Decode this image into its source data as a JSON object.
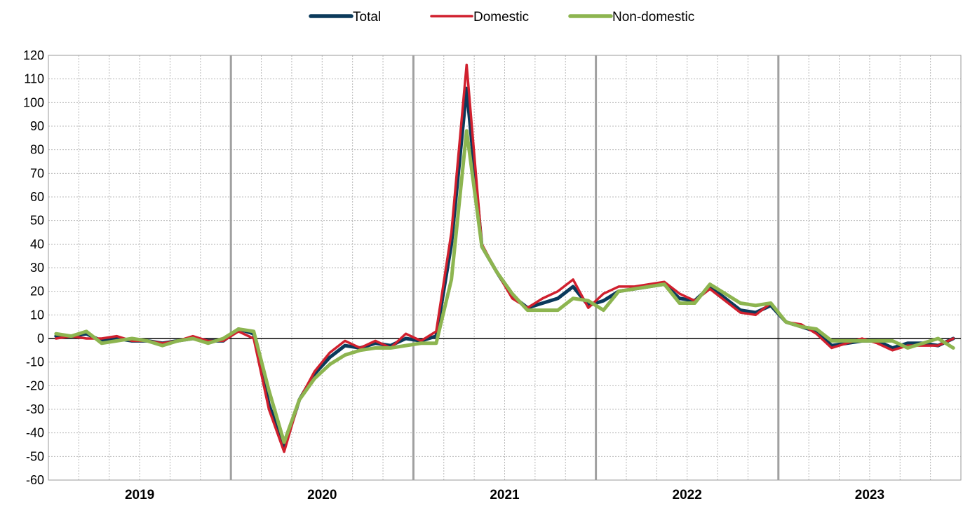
{
  "chart_data": {
    "type": "line",
    "title": "",
    "xlabel": "",
    "ylabel": "",
    "ylim": [
      -60,
      120
    ],
    "ytick_step": 10,
    "grid": true,
    "legend_position": "top-center",
    "years": [
      "2019",
      "2020",
      "2021",
      "2022",
      "2023"
    ],
    "months_per_year": 12,
    "series": [
      {
        "name": "Total",
        "color": "#0b3a5b",
        "values": [
          1,
          1,
          2,
          -1,
          0,
          -1,
          -1,
          -2,
          -1,
          0,
          -1,
          -1,
          4,
          2,
          -28,
          -46,
          -26,
          -15,
          -8,
          -3,
          -4,
          -2,
          -3,
          0,
          -1,
          1,
          40,
          106,
          39,
          28,
          18,
          13,
          15,
          17,
          22,
          14,
          16,
          20,
          21,
          22,
          23,
          17,
          16,
          22,
          17,
          12,
          11,
          14,
          7,
          5,
          3,
          -3,
          -2,
          -1,
          -1,
          -4,
          -2,
          -2,
          -3,
          0
        ]
      },
      {
        "name": "Domestic",
        "color": "#d0202e",
        "values": [
          0,
          1,
          0,
          0,
          1,
          -1,
          -1,
          -2,
          -1,
          1,
          -1,
          -1,
          3,
          0,
          -30,
          -48,
          -26,
          -14,
          -6,
          -1,
          -4,
          -1,
          -4,
          2,
          -1,
          3,
          45,
          116,
          40,
          28,
          17,
          13,
          17,
          20,
          25,
          13,
          19,
          22,
          22,
          23,
          24,
          19,
          16,
          21,
          16,
          11,
          10,
          15,
          7,
          6,
          2,
          -4,
          -2,
          0,
          -2,
          -5,
          -3,
          -3,
          -3,
          0
        ]
      },
      {
        "name": "Non-domestic",
        "color": "#8db550",
        "values": [
          2,
          1,
          3,
          -2,
          -1,
          0,
          -1,
          -3,
          -1,
          0,
          -2,
          0,
          4,
          3,
          -22,
          -44,
          -26,
          -17,
          -11,
          -7,
          -5,
          -4,
          -4,
          -3,
          -2,
          -2,
          25,
          88,
          39,
          28,
          19,
          12,
          12,
          12,
          17,
          16,
          12,
          20,
          21,
          22,
          23,
          15,
          15,
          23,
          19,
          15,
          14,
          15,
          7,
          5,
          4,
          -1,
          -1,
          -1,
          -1,
          -1,
          -4,
          -2,
          0,
          -4
        ]
      }
    ]
  }
}
